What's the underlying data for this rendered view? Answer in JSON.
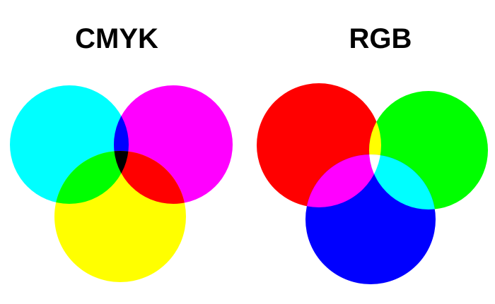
{
  "cmyk": {
    "title": "CMYK",
    "colors": {
      "cyan": "#00ffff",
      "magenta": "#ff00ff",
      "yellow": "#ffff00",
      "cyan_magenta": "#0000ff",
      "cyan_yellow": "#00ff00",
      "magenta_yellow": "#ff0000",
      "all": "#000000"
    }
  },
  "rgb": {
    "title": "RGB",
    "colors": {
      "red": "#ff0000",
      "green": "#00ff00",
      "blue": "#0000ff",
      "red_green": "#ffff00",
      "red_blue": "#ff00ff",
      "green_blue": "#00ffff",
      "all": "#ffffff"
    }
  }
}
